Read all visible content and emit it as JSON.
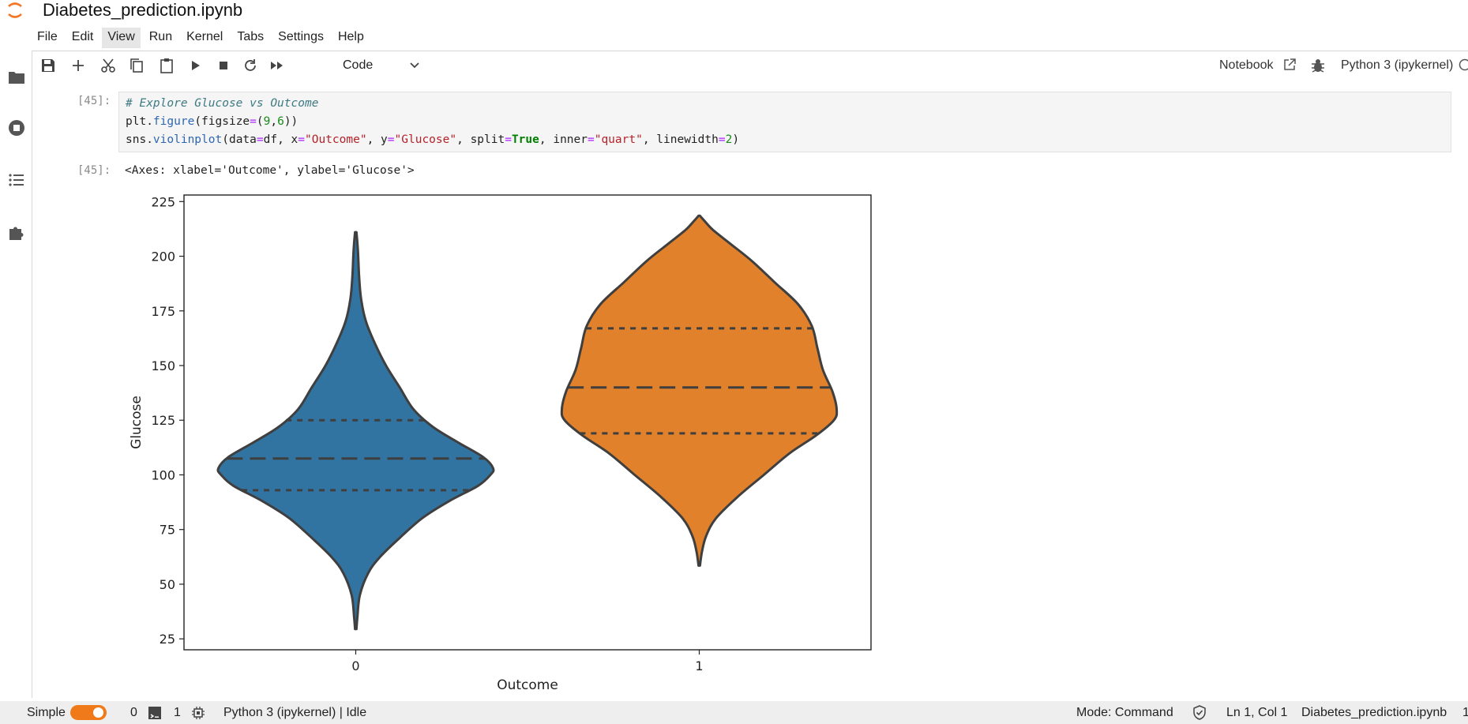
{
  "app": {
    "title": "Diabetes_prediction.ipynb"
  },
  "menu": [
    "File",
    "Edit",
    "View",
    "Run",
    "Kernel",
    "Tabs",
    "Settings",
    "Help"
  ],
  "toolbar": {
    "cell_type": "Code",
    "notebook_label": "Notebook",
    "kernel": "Python 3 (ipykernel)"
  },
  "cell": {
    "in_prompt": "[45]:",
    "out_prompt": "[45]:",
    "output_text": "<Axes: xlabel='Outcome', ylabel='Glucose'>"
  },
  "status": {
    "mode_label": "Simple",
    "terminals": "0",
    "kernels": "1",
    "kernel_status": "Python 3 (ipykernel) | Idle",
    "mode": "Mode: Command",
    "cursor": "Ln 1, Col 1",
    "file": "Diabetes_prediction.ipynb",
    "trailing": "1"
  },
  "colors": {
    "accent": "#f07a1a",
    "outcome_0": "#3274a1",
    "outcome_1": "#e1812c"
  },
  "icons": [
    "folder-icon",
    "running-icon",
    "toc-icon",
    "extension-icon",
    "save-icon",
    "add-cell-icon",
    "cut-icon",
    "copy-icon",
    "paste-icon",
    "run-icon",
    "stop-icon",
    "restart-icon",
    "fast-forward-icon",
    "chevron-down-icon",
    "external-link-icon",
    "bug-icon",
    "kernel-status-icon",
    "terminal-icon",
    "cpu-icon",
    "shield-check-icon"
  ],
  "chart_data": {
    "type": "violin",
    "xlabel": "Outcome",
    "ylabel": "Glucose",
    "categories": [
      "0",
      "1"
    ],
    "ylim": [
      20,
      228
    ],
    "yticks": [
      25,
      50,
      75,
      100,
      125,
      150,
      175,
      200,
      225
    ],
    "grid": false,
    "inner": "quart",
    "violins": [
      {
        "category": "0",
        "color": "#3274a1",
        "min": 29.5,
        "max": 211,
        "q1": 93,
        "median": 107.5,
        "q3": 125,
        "profile": [
          [
            29.5,
            0.005
          ],
          [
            35,
            0.012
          ],
          [
            45,
            0.03
          ],
          [
            55,
            0.09
          ],
          [
            62,
            0.17
          ],
          [
            70,
            0.3
          ],
          [
            80,
            0.48
          ],
          [
            88,
            0.68
          ],
          [
            95,
            0.89
          ],
          [
            100,
            0.98
          ],
          [
            103,
            1.0
          ],
          [
            108,
            0.93
          ],
          [
            115,
            0.74
          ],
          [
            122,
            0.56
          ],
          [
            130,
            0.42
          ],
          [
            140,
            0.32
          ],
          [
            150,
            0.22
          ],
          [
            160,
            0.14
          ],
          [
            170,
            0.075
          ],
          [
            180,
            0.04
          ],
          [
            190,
            0.025
          ],
          [
            200,
            0.018
          ],
          [
            206,
            0.012
          ],
          [
            211,
            0.005
          ]
        ]
      },
      {
        "category": "1",
        "color": "#e1812c",
        "min": 58.5,
        "max": 218.5,
        "q1": 119,
        "median": 140,
        "q3": 167,
        "profile": [
          [
            58.5,
            0.005
          ],
          [
            65,
            0.02
          ],
          [
            72,
            0.05
          ],
          [
            80,
            0.12
          ],
          [
            90,
            0.28
          ],
          [
            100,
            0.47
          ],
          [
            110,
            0.66
          ],
          [
            118,
            0.85
          ],
          [
            125,
            0.98
          ],
          [
            130,
            1.0
          ],
          [
            138,
            0.97
          ],
          [
            148,
            0.9
          ],
          [
            158,
            0.86
          ],
          [
            168,
            0.82
          ],
          [
            178,
            0.72
          ],
          [
            188,
            0.55
          ],
          [
            198,
            0.38
          ],
          [
            206,
            0.22
          ],
          [
            212,
            0.1
          ],
          [
            216,
            0.04
          ],
          [
            218.5,
            0.005
          ]
        ]
      }
    ]
  }
}
